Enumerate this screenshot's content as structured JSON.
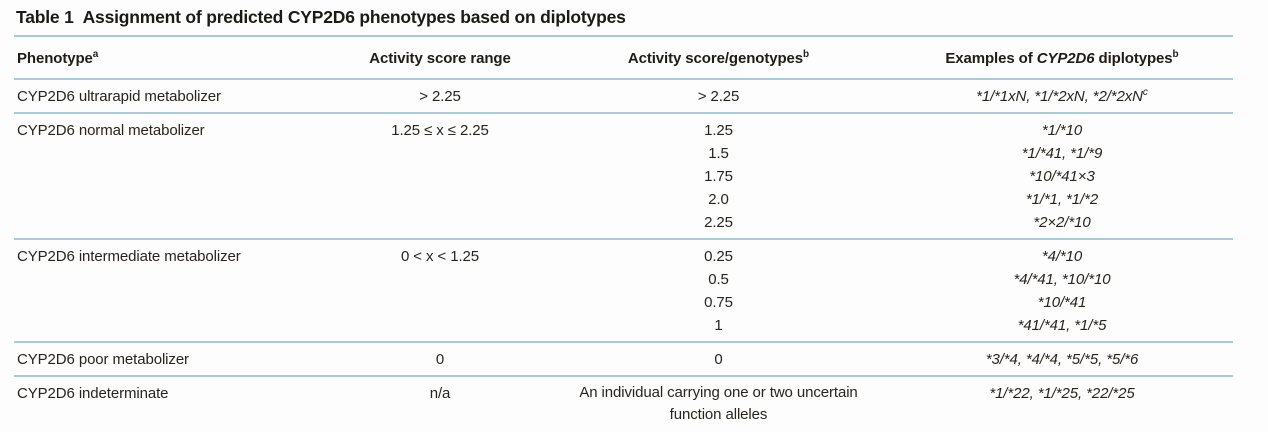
{
  "colors": {
    "rule_blue": "#a7cadd",
    "text": "#28241f",
    "background": "#fdfdfd"
  },
  "title": {
    "label": "Table 1",
    "text": "Assignment of predicted CYP2D6 phenotypes based on diplotypes"
  },
  "header": {
    "phenotype": {
      "text": "Phenotype",
      "sup": "a"
    },
    "range": {
      "text": "Activity score range"
    },
    "genotypes": {
      "text": "Activity score/genotypes",
      "sup": "b"
    },
    "examples": {
      "pre": "Examples of ",
      "gene": "CYP2D6",
      "post": " diplotypes",
      "sup": "b"
    }
  },
  "rows": [
    {
      "phenotype": "CYP2D6 ultrarapid metabolizer",
      "activity_score_range": "> 2.25",
      "scores": [
        "> 2.25"
      ],
      "examples": [
        {
          "text": "*1/*1xN, *1/*2xN, *2/*2xN",
          "sup": "c"
        }
      ]
    },
    {
      "phenotype": "CYP2D6 normal metabolizer",
      "activity_score_range": "1.25 ≤ x ≤ 2.25",
      "scores": [
        "1.25",
        "1.5",
        "1.75",
        "2.0",
        "2.25"
      ],
      "examples": [
        {
          "text": "*1/*10"
        },
        {
          "text": "*1/*41, *1/*9"
        },
        {
          "text": "*10/*41×3"
        },
        {
          "text": "*1/*1, *1/*2"
        },
        {
          "text": "*2×2/*10"
        }
      ]
    },
    {
      "phenotype": "CYP2D6 intermediate metabolizer",
      "activity_score_range": "0 < x < 1.25",
      "scores": [
        "0.25",
        "0.5",
        "0.75",
        "1"
      ],
      "examples": [
        {
          "text": "*4/*10"
        },
        {
          "text": "*4/*41, *10/*10"
        },
        {
          "text": "*10/*41"
        },
        {
          "text": "*41/*41, *1/*5"
        }
      ]
    },
    {
      "phenotype": "CYP2D6 poor metabolizer",
      "activity_score_range": "0",
      "scores": [
        "0"
      ],
      "examples": [
        {
          "text": "*3/*4, *4/*4, *5/*5, *5/*6"
        }
      ]
    },
    {
      "phenotype": "CYP2D6 indeterminate",
      "activity_score_range": "n/a",
      "scores": [
        "An individual carrying one or two uncertain function alleles"
      ],
      "scores_wrap": true,
      "examples": [
        {
          "text": "*1/*22, *1/*25, *22/*25"
        }
      ]
    }
  ]
}
